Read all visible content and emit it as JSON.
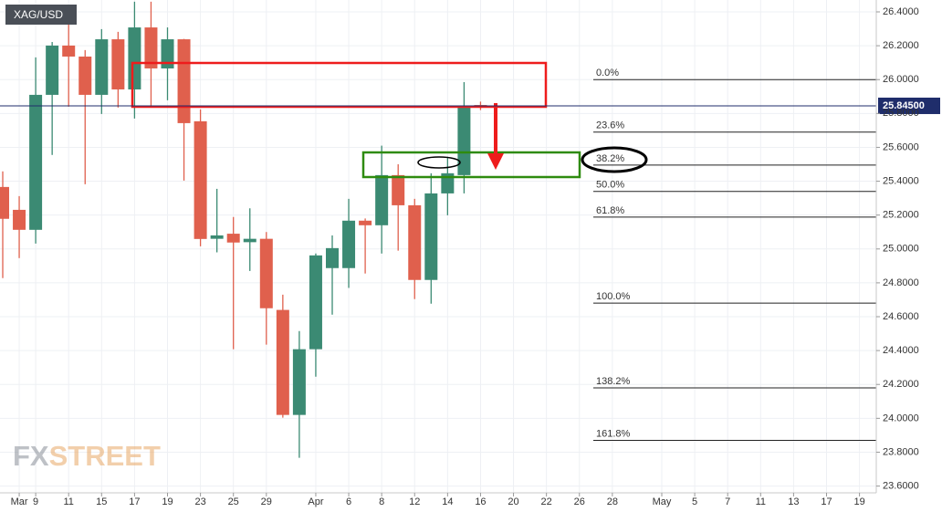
{
  "chart_data": {
    "type": "candlestick",
    "symbol": "XAG/USD",
    "watermark": [
      "FX",
      "STREET"
    ],
    "categories": [
      null,
      "Mar",
      "9",
      null,
      "11",
      null,
      "15",
      null,
      "17",
      null,
      "19",
      null,
      "23",
      null,
      "25",
      null,
      "29",
      null,
      null,
      "Apr",
      null,
      "6",
      null,
      "8",
      null,
      "12",
      null,
      "14",
      null,
      "16",
      null,
      "20",
      null,
      "22",
      null,
      "26",
      null,
      "28",
      null,
      null,
      "May",
      null,
      "5",
      null,
      "7",
      null,
      "11",
      null,
      "13",
      null,
      "17",
      null,
      "19"
    ],
    "open": [
      25.366,
      25.231,
      25.113,
      25.91,
      26.201,
      26.136,
      25.91,
      26.238,
      25.942,
      26.308,
      26.066,
      26.238,
      25.754,
      25.06,
      25.09,
      25.04,
      25.06,
      24.64,
      24.02,
      24.408,
      24.887,
      24.887,
      25.167,
      25.14,
      25.436,
      25.258,
      24.817,
      25.328,
      25.436,
      25.85,
      null,
      null,
      null,
      null,
      null,
      null,
      null,
      null,
      null,
      null,
      null,
      null,
      null,
      null,
      null,
      null,
      null,
      null,
      null,
      null,
      null,
      null,
      null
    ],
    "high": [
      25.458,
      25.312,
      26.131,
      26.222,
      26.43,
      26.174,
      26.298,
      26.282,
      26.46,
      26.46,
      26.308,
      26.24,
      25.824,
      25.355,
      25.189,
      25.24,
      25.1,
      24.73,
      24.515,
      24.973,
      25.08,
      25.296,
      25.18,
      25.61,
      25.5,
      25.296,
      25.447,
      25.544,
      25.985,
      25.87,
      null,
      null,
      null,
      null,
      null,
      null,
      null,
      null,
      null,
      null,
      null,
      null,
      null,
      null,
      null,
      null,
      null,
      null,
      null,
      null,
      null,
      null,
      null
    ],
    "low": [
      24.828,
      24.946,
      25.032,
      25.555,
      25.84,
      25.382,
      25.797,
      25.835,
      25.77,
      25.835,
      25.878,
      25.404,
      25.016,
      24.98,
      24.408,
      24.87,
      24.435,
      24.004,
      23.767,
      24.246,
      24.612,
      24.77,
      24.855,
      24.973,
      24.99,
      24.704,
      24.677,
      25.199,
      25.328,
      25.82,
      null,
      null,
      null,
      null,
      null,
      null,
      null,
      null,
      null,
      null,
      null,
      null,
      null,
      null,
      null,
      null,
      null,
      null,
      null,
      null,
      null,
      null,
      null
    ],
    "close": [
      25.178,
      25.113,
      25.91,
      26.201,
      26.136,
      25.91,
      26.238,
      25.942,
      26.308,
      26.066,
      26.238,
      25.743,
      25.059,
      25.08,
      25.038,
      25.06,
      24.65,
      24.02,
      24.408,
      24.962,
      25.005,
      25.167,
      25.14,
      25.436,
      25.258,
      24.817,
      25.328,
      25.447,
      25.835,
      25.845,
      null,
      null,
      null,
      null,
      null,
      null,
      null,
      null,
      null,
      null,
      null,
      null,
      null,
      null,
      null,
      null,
      null,
      null,
      null,
      null,
      null,
      null,
      null
    ],
    "up_color": "#3b8a73",
    "down_color": "#e0604d",
    "ylim": [
      23.56,
      26.47
    ],
    "yticks": [
      {
        "value": 23.6,
        "label": "23.6000"
      },
      {
        "value": 23.8,
        "label": "23.8000"
      },
      {
        "value": 24.0,
        "label": "24.0000"
      },
      {
        "value": 24.2,
        "label": "24.2000"
      },
      {
        "value": 24.4,
        "label": "24.4000"
      },
      {
        "value": 24.6,
        "label": "24.6000"
      },
      {
        "value": 24.8,
        "label": "24.8000"
      },
      {
        "value": 25.0,
        "label": "25.0000"
      },
      {
        "value": 25.2,
        "label": "25.2000"
      },
      {
        "value": 25.4,
        "label": "25.4000"
      },
      {
        "value": 25.6,
        "label": "25.6000"
      },
      {
        "value": 25.8,
        "label": "25.8000"
      },
      {
        "value": 26.0,
        "label": "26.0000"
      },
      {
        "value": 26.2,
        "label": "26.2000"
      },
      {
        "value": 26.4,
        "label": "26.4000"
      }
    ],
    "grid": true,
    "last_price": {
      "value": 25.845,
      "label": "25.84500"
    },
    "fib_levels": [
      {
        "label": "0.0%",
        "value": 26.0
      },
      {
        "label": "23.6%",
        "value": 25.69
      },
      {
        "label": "38.2%",
        "value": 25.495
      },
      {
        "label": "50.0%",
        "value": 25.34
      },
      {
        "label": "61.8%",
        "value": 25.188
      },
      {
        "label": "100.0%",
        "value": 24.68
      },
      {
        "label": "138.2%",
        "value": 24.18
      },
      {
        "label": "161.8%",
        "value": 23.87
      }
    ]
  }
}
